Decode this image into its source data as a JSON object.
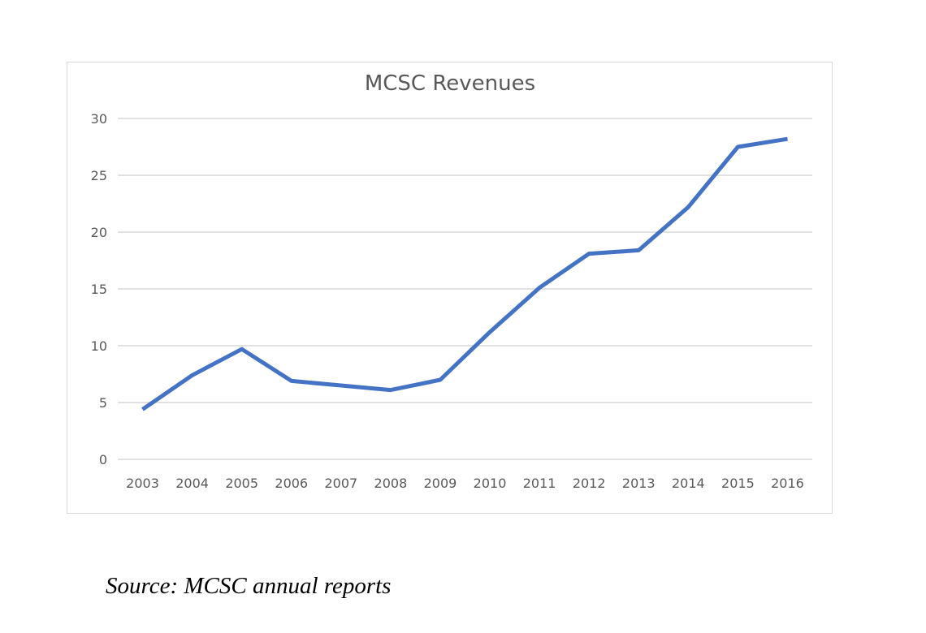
{
  "chart_data": {
    "type": "line",
    "title": "MCSC Revenues",
    "xlabel": "",
    "ylabel": "",
    "categories": [
      "2003",
      "2004",
      "2005",
      "2006",
      "2007",
      "2008",
      "2009",
      "2010",
      "2011",
      "2012",
      "2013",
      "2014",
      "2015",
      "2016"
    ],
    "series": [
      {
        "name": "Revenues",
        "color": "#4472c4",
        "values": [
          4.4,
          7.4,
          9.7,
          6.9,
          6.5,
          6.1,
          7.0,
          11.2,
          15.1,
          18.1,
          18.4,
          22.2,
          27.5,
          28.2
        ]
      }
    ],
    "ylim": [
      0,
      30
    ],
    "yticks": [
      "0",
      "5",
      "10",
      "15",
      "20",
      "25",
      "30"
    ],
    "grid": true,
    "legend": "none",
    "gridline_color": "#d9d9d9"
  },
  "caption": {
    "source": "Source: MCSC annual reports"
  }
}
